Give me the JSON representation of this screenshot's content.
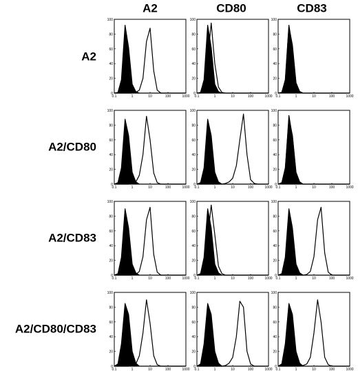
{
  "column_labels": [
    "A2",
    "CD80",
    "CD83"
  ],
  "row_labels": [
    "A2",
    "A2/CD80",
    "A2/CD83",
    "A2/CD80/CD83"
  ],
  "chart_data": [
    {
      "type": "histogram",
      "xscale": "log",
      "x": [
        0.1,
        0.16,
        0.25,
        0.4,
        0.63,
        1,
        1.6,
        2.5,
        4,
        6.3,
        10,
        16,
        25,
        40,
        63,
        100,
        160,
        250,
        400,
        630,
        1000
      ],
      "xlim": [
        0.1,
        1000
      ],
      "ylim": [
        0,
        100
      ],
      "xticks": [
        0.1,
        1,
        10,
        100,
        1000
      ],
      "yticks": [
        0,
        20,
        40,
        60,
        80,
        100
      ],
      "series": [
        {
          "color": "#000000",
          "filled": true,
          "values": [
            0,
            1,
            18,
            92,
            62,
            12,
            2,
            0,
            0,
            0,
            0,
            0,
            0,
            0,
            0,
            0,
            0,
            0,
            0,
            0,
            0
          ]
        },
        {
          "color": "#000000",
          "filled": false,
          "values": [
            0,
            0,
            0,
            0,
            0,
            0,
            1,
            4,
            20,
            70,
            88,
            30,
            4,
            0,
            0,
            0,
            0,
            0,
            0,
            0,
            0
          ]
        }
      ]
    },
    {
      "type": "histogram",
      "xscale": "log",
      "x": [
        0.1,
        0.16,
        0.25,
        0.4,
        0.63,
        1,
        1.6,
        2.5,
        4,
        6.3,
        10,
        16,
        25,
        40,
        63,
        100,
        160,
        250,
        400,
        630,
        1000
      ],
      "xlim": [
        0.1,
        1000
      ],
      "ylim": [
        0,
        100
      ],
      "xticks": [
        0.1,
        1,
        10,
        100,
        1000
      ],
      "yticks": [
        0,
        20,
        40,
        60,
        80,
        100
      ],
      "series": [
        {
          "color": "#000000",
          "filled": true,
          "values": [
            0,
            1,
            18,
            92,
            62,
            12,
            2,
            0,
            0,
            0,
            0,
            0,
            0,
            0,
            0,
            0,
            0,
            0,
            0,
            0,
            0
          ]
        },
        {
          "color": "#000000",
          "filled": false,
          "values": [
            0,
            0,
            2,
            45,
            95,
            40,
            8,
            1,
            0,
            0,
            0,
            0,
            0,
            0,
            0,
            0,
            0,
            0,
            0,
            0,
            0
          ]
        }
      ]
    },
    {
      "type": "histogram",
      "xscale": "log",
      "x": [
        0.1,
        0.16,
        0.25,
        0.4,
        0.63,
        1,
        1.6,
        2.5,
        4,
        6.3,
        10,
        16,
        25,
        40,
        63,
        100,
        160,
        250,
        400,
        630,
        1000
      ],
      "xlim": [
        0.1,
        1000
      ],
      "ylim": [
        0,
        100
      ],
      "xticks": [
        0.1,
        1,
        10,
        100,
        1000
      ],
      "yticks": [
        0,
        20,
        40,
        60,
        80,
        100
      ],
      "series": [
        {
          "color": "#000000",
          "filled": true,
          "values": [
            0,
            1,
            18,
            92,
            62,
            12,
            2,
            0,
            0,
            0,
            0,
            0,
            0,
            0,
            0,
            0,
            0,
            0,
            0,
            0,
            0
          ]
        },
        {
          "color": "#000000",
          "filled": false,
          "values": [
            0,
            1,
            15,
            90,
            65,
            14,
            2,
            0,
            0,
            0,
            0,
            0,
            0,
            0,
            0,
            0,
            0,
            0,
            0,
            0,
            0
          ]
        }
      ]
    },
    {
      "type": "histogram",
      "xscale": "log",
      "x": [
        0.1,
        0.16,
        0.25,
        0.4,
        0.63,
        1,
        1.6,
        2.5,
        4,
        6.3,
        10,
        16,
        25,
        40,
        63,
        100,
        160,
        250,
        400,
        630,
        1000
      ],
      "xlim": [
        0.1,
        1000
      ],
      "ylim": [
        0,
        100
      ],
      "xticks": [
        0.1,
        1,
        10,
        100,
        1000
      ],
      "yticks": [
        0,
        20,
        40,
        60,
        80,
        100
      ],
      "series": [
        {
          "color": "#000000",
          "filled": true,
          "values": [
            0,
            2,
            22,
            88,
            66,
            16,
            3,
            0,
            0,
            0,
            0,
            0,
            0,
            0,
            0,
            0,
            0,
            0,
            0,
            0,
            0
          ]
        },
        {
          "color": "#000000",
          "filled": false,
          "values": [
            0,
            0,
            0,
            0,
            0,
            1,
            3,
            12,
            40,
            92,
            60,
            15,
            2,
            0,
            0,
            0,
            0,
            0,
            0,
            0,
            0
          ]
        }
      ]
    },
    {
      "type": "histogram",
      "xscale": "log",
      "x": [
        0.1,
        0.16,
        0.25,
        0.4,
        0.63,
        1,
        1.6,
        2.5,
        4,
        6.3,
        10,
        16,
        25,
        40,
        63,
        100,
        160,
        250,
        400,
        630,
        1000
      ],
      "xlim": [
        0.1,
        1000
      ],
      "ylim": [
        0,
        100
      ],
      "xticks": [
        0.1,
        1,
        10,
        100,
        1000
      ],
      "yticks": [
        0,
        20,
        40,
        60,
        80,
        100
      ],
      "series": [
        {
          "color": "#000000",
          "filled": true,
          "values": [
            0,
            2,
            22,
            88,
            66,
            16,
            3,
            0,
            0,
            0,
            0,
            0,
            0,
            0,
            0,
            0,
            0,
            0,
            0,
            0,
            0
          ]
        },
        {
          "color": "#000000",
          "filled": false,
          "values": [
            0,
            0,
            0,
            0,
            0,
            0,
            0,
            0,
            1,
            3,
            8,
            25,
            60,
            95,
            40,
            6,
            1,
            0,
            0,
            0,
            0
          ]
        }
      ]
    },
    {
      "type": "histogram",
      "xscale": "log",
      "x": [
        0.1,
        0.16,
        0.25,
        0.4,
        0.63,
        1,
        1.6,
        2.5,
        4,
        6.3,
        10,
        16,
        25,
        40,
        63,
        100,
        160,
        250,
        400,
        630,
        1000
      ],
      "xlim": [
        0.1,
        1000
      ],
      "ylim": [
        0,
        100
      ],
      "xticks": [
        0.1,
        1,
        10,
        100,
        1000
      ],
      "yticks": [
        0,
        20,
        40,
        60,
        80,
        100
      ],
      "series": [
        {
          "color": "#000000",
          "filled": true,
          "values": [
            0,
            2,
            22,
            88,
            66,
            16,
            3,
            0,
            0,
            0,
            0,
            0,
            0,
            0,
            0,
            0,
            0,
            0,
            0,
            0,
            0
          ]
        },
        {
          "color": "#000000",
          "filled": false,
          "values": [
            0,
            1,
            18,
            93,
            64,
            14,
            2,
            0,
            0,
            0,
            0,
            0,
            0,
            0,
            0,
            0,
            0,
            0,
            0,
            0,
            0
          ]
        }
      ]
    },
    {
      "type": "histogram",
      "xscale": "log",
      "x": [
        0.1,
        0.16,
        0.25,
        0.4,
        0.63,
        1,
        1.6,
        2.5,
        4,
        6.3,
        10,
        16,
        25,
        40,
        63,
        100,
        160,
        250,
        400,
        630,
        1000
      ],
      "xlim": [
        0.1,
        1000
      ],
      "ylim": [
        0,
        100
      ],
      "xticks": [
        0.1,
        1,
        10,
        100,
        1000
      ],
      "yticks": [
        0,
        20,
        40,
        60,
        80,
        100
      ],
      "series": [
        {
          "color": "#000000",
          "filled": true,
          "values": [
            0,
            2,
            24,
            90,
            64,
            15,
            3,
            0,
            0,
            0,
            0,
            0,
            0,
            0,
            0,
            0,
            0,
            0,
            0,
            0,
            0
          ]
        },
        {
          "color": "#000000",
          "filled": false,
          "values": [
            0,
            0,
            0,
            0,
            0,
            0,
            1,
            5,
            25,
            75,
            92,
            28,
            4,
            0,
            0,
            0,
            0,
            0,
            0,
            0,
            0
          ]
        }
      ]
    },
    {
      "type": "histogram",
      "xscale": "log",
      "x": [
        0.1,
        0.16,
        0.25,
        0.4,
        0.63,
        1,
        1.6,
        2.5,
        4,
        6.3,
        10,
        16,
        25,
        40,
        63,
        100,
        160,
        250,
        400,
        630,
        1000
      ],
      "xlim": [
        0.1,
        1000
      ],
      "ylim": [
        0,
        100
      ],
      "xticks": [
        0.1,
        1,
        10,
        100,
        1000
      ],
      "yticks": [
        0,
        20,
        40,
        60,
        80,
        100
      ],
      "series": [
        {
          "color": "#000000",
          "filled": true,
          "values": [
            0,
            2,
            24,
            90,
            64,
            15,
            3,
            0,
            0,
            0,
            0,
            0,
            0,
            0,
            0,
            0,
            0,
            0,
            0,
            0,
            0
          ]
        },
        {
          "color": "#000000",
          "filled": false,
          "values": [
            0,
            0,
            3,
            50,
            95,
            55,
            12,
            2,
            0,
            0,
            0,
            0,
            0,
            0,
            0,
            0,
            0,
            0,
            0,
            0,
            0
          ]
        }
      ]
    },
    {
      "type": "histogram",
      "xscale": "log",
      "x": [
        0.1,
        0.16,
        0.25,
        0.4,
        0.63,
        1,
        1.6,
        2.5,
        4,
        6.3,
        10,
        16,
        25,
        40,
        63,
        100,
        160,
        250,
        400,
        630,
        1000
      ],
      "xlim": [
        0.1,
        1000
      ],
      "ylim": [
        0,
        100
      ],
      "xticks": [
        0.1,
        1,
        10,
        100,
        1000
      ],
      "yticks": [
        0,
        20,
        40,
        60,
        80,
        100
      ],
      "series": [
        {
          "color": "#000000",
          "filled": true,
          "values": [
            0,
            2,
            24,
            90,
            64,
            15,
            3,
            0,
            0,
            0,
            0,
            0,
            0,
            0,
            0,
            0,
            0,
            0,
            0,
            0,
            0
          ]
        },
        {
          "color": "#000000",
          "filled": false,
          "values": [
            0,
            0,
            0,
            0,
            0,
            0,
            0,
            0,
            1,
            5,
            25,
            75,
            92,
            30,
            4,
            0,
            0,
            0,
            0,
            0,
            0
          ]
        }
      ]
    },
    {
      "type": "histogram",
      "xscale": "log",
      "x": [
        0.1,
        0.16,
        0.25,
        0.4,
        0.63,
        1,
        1.6,
        2.5,
        4,
        6.3,
        10,
        16,
        25,
        40,
        63,
        100,
        160,
        250,
        400,
        630,
        1000
      ],
      "xlim": [
        0.1,
        1000
      ],
      "ylim": [
        0,
        100
      ],
      "xticks": [
        0.1,
        1,
        10,
        100,
        1000
      ],
      "yticks": [
        0,
        20,
        40,
        60,
        80,
        100
      ],
      "series": [
        {
          "color": "#000000",
          "filled": true,
          "values": [
            0,
            3,
            30,
            85,
            70,
            20,
            4,
            0,
            0,
            0,
            0,
            0,
            0,
            0,
            0,
            0,
            0,
            0,
            0,
            0,
            0
          ]
        },
        {
          "color": "#000000",
          "filled": false,
          "values": [
            0,
            0,
            0,
            0,
            0,
            1,
            3,
            14,
            45,
            90,
            58,
            14,
            2,
            0,
            0,
            0,
            0,
            0,
            0,
            0,
            0
          ]
        }
      ]
    },
    {
      "type": "histogram",
      "xscale": "log",
      "x": [
        0.1,
        0.16,
        0.25,
        0.4,
        0.63,
        1,
        1.6,
        2.5,
        4,
        6.3,
        10,
        16,
        25,
        40,
        63,
        100,
        160,
        250,
        400,
        630,
        1000
      ],
      "xlim": [
        0.1,
        1000
      ],
      "ylim": [
        0,
        100
      ],
      "xticks": [
        0.1,
        1,
        10,
        100,
        1000
      ],
      "yticks": [
        0,
        20,
        40,
        60,
        80,
        100
      ],
      "series": [
        {
          "color": "#000000",
          "filled": true,
          "values": [
            0,
            3,
            30,
            85,
            70,
            20,
            4,
            0,
            0,
            0,
            0,
            0,
            0,
            0,
            0,
            0,
            0,
            0,
            0,
            0,
            0
          ]
        },
        {
          "color": "#000000",
          "filled": false,
          "values": [
            0,
            0,
            0,
            0,
            0,
            0,
            0,
            0,
            1,
            4,
            12,
            40,
            88,
            80,
            20,
            3,
            0,
            0,
            0,
            0,
            0
          ]
        }
      ]
    },
    {
      "type": "histogram",
      "xscale": "log",
      "x": [
        0.1,
        0.16,
        0.25,
        0.4,
        0.63,
        1,
        1.6,
        2.5,
        4,
        6.3,
        10,
        16,
        25,
        40,
        63,
        100,
        160,
        250,
        400,
        630,
        1000
      ],
      "xlim": [
        0.1,
        1000
      ],
      "ylim": [
        0,
        100
      ],
      "xticks": [
        0.1,
        1,
        10,
        100,
        1000
      ],
      "yticks": [
        0,
        20,
        40,
        60,
        80,
        100
      ],
      "series": [
        {
          "color": "#000000",
          "filled": true,
          "values": [
            0,
            3,
            30,
            85,
            70,
            20,
            4,
            0,
            0,
            0,
            0,
            0,
            0,
            0,
            0,
            0,
            0,
            0,
            0,
            0,
            0
          ]
        },
        {
          "color": "#000000",
          "filled": false,
          "values": [
            0,
            0,
            0,
            0,
            0,
            0,
            0,
            1,
            3,
            12,
            45,
            90,
            60,
            12,
            2,
            0,
            0,
            0,
            0,
            0,
            0
          ]
        }
      ]
    }
  ]
}
